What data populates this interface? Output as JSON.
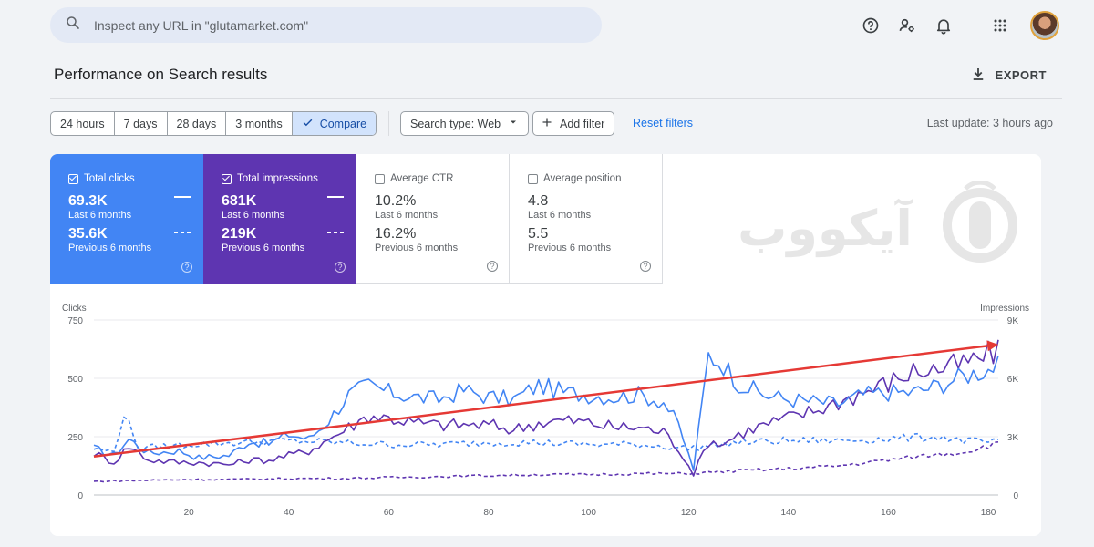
{
  "search": {
    "placeholder": "Inspect any URL in \"glutamarket.com\""
  },
  "header": {
    "icons": [
      "help-icon",
      "manage-accounts-icon",
      "notifications-icon",
      "apps-grid-icon"
    ]
  },
  "page": {
    "title": "Performance on Search results",
    "export_label": "EXPORT"
  },
  "filters": {
    "ranges": [
      {
        "label": "24 hours",
        "active": false
      },
      {
        "label": "7 days",
        "active": false
      },
      {
        "label": "28 days",
        "active": false
      },
      {
        "label": "3 months",
        "active": false
      },
      {
        "label": "Compare",
        "active": true
      }
    ],
    "search_type": "Search type: Web",
    "add_filter": "Add filter",
    "reset": "Reset filters",
    "last_update": "Last update: 3 hours ago"
  },
  "metrics": {
    "clicks": {
      "label": "Total clicks",
      "value": "69.3K",
      "period": "Last 6 months",
      "prev_value": "35.6K",
      "prev_period": "Previous 6 months",
      "checked": true,
      "color": "#4285f4"
    },
    "impressions": {
      "label": "Total impressions",
      "value": "681K",
      "period": "Last 6 months",
      "prev_value": "219K",
      "prev_period": "Previous 6 months",
      "checked": true,
      "color": "#5e35b1"
    },
    "ctr": {
      "label": "Average CTR",
      "value": "10.2%",
      "period": "Last 6 months",
      "prev_value": "16.2%",
      "prev_period": "Previous 6 months",
      "checked": false
    },
    "position": {
      "label": "Average position",
      "value": "4.8",
      "period": "Last 6 months",
      "prev_value": "5.5",
      "prev_period": "Previous 6 months",
      "checked": false
    }
  },
  "watermark": {
    "text": "آیکووب"
  },
  "chart_data": {
    "type": "line",
    "left_axis": {
      "label": "Clicks",
      "ticks": [
        "0",
        "250",
        "500",
        "750"
      ],
      "range": [
        0,
        750
      ]
    },
    "right_axis": {
      "label": "Impressions",
      "ticks": [
        "0",
        "3K",
        "6K",
        "9K"
      ],
      "range": [
        0,
        9000
      ]
    },
    "x_ticks": [
      "20",
      "40",
      "60",
      "80",
      "100",
      "120",
      "140",
      "160",
      "180"
    ],
    "x_range": [
      1,
      182
    ],
    "grid": true,
    "series": [
      {
        "axis": "left",
        "style": "solid",
        "color": "#4285f4",
        "keypoints": [
          [
            1,
            200
          ],
          [
            5,
            170
          ],
          [
            8,
            240
          ],
          [
            12,
            180
          ],
          [
            18,
            190
          ],
          [
            22,
            160
          ],
          [
            28,
            170
          ],
          [
            32,
            230
          ],
          [
            36,
            220
          ],
          [
            40,
            260
          ],
          [
            44,
            240
          ],
          [
            48,
            320
          ],
          [
            52,
            430
          ],
          [
            56,
            470
          ],
          [
            60,
            440
          ],
          [
            65,
            420
          ],
          [
            70,
            410
          ],
          [
            75,
            450
          ],
          [
            80,
            420
          ],
          [
            85,
            410
          ],
          [
            90,
            470
          ],
          [
            95,
            440
          ],
          [
            100,
            430
          ],
          [
            105,
            420
          ],
          [
            110,
            430
          ],
          [
            115,
            400
          ],
          [
            118,
            300
          ],
          [
            121,
            110
          ],
          [
            124,
            600
          ],
          [
            127,
            560
          ],
          [
            130,
            480
          ],
          [
            135,
            430
          ],
          [
            140,
            410
          ],
          [
            145,
            400
          ],
          [
            150,
            390
          ],
          [
            155,
            430
          ],
          [
            160,
            440
          ],
          [
            165,
            440
          ],
          [
            170,
            470
          ],
          [
            175,
            510
          ],
          [
            180,
            540
          ],
          [
            181,
            550
          ]
        ]
      },
      {
        "axis": "left",
        "style": "solid",
        "color": "#5e35b1",
        "keypoints": [
          [
            1,
            180
          ],
          [
            5,
            140
          ],
          [
            8,
            210
          ],
          [
            12,
            150
          ],
          [
            18,
            140
          ],
          [
            22,
            140
          ],
          [
            28,
            130
          ],
          [
            32,
            150
          ],
          [
            36,
            150
          ],
          [
            40,
            170
          ],
          [
            44,
            190
          ],
          [
            48,
            240
          ],
          [
            52,
            290
          ],
          [
            56,
            340
          ],
          [
            60,
            330
          ],
          [
            65,
            310
          ],
          [
            70,
            300
          ],
          [
            75,
            300
          ],
          [
            80,
            300
          ],
          [
            85,
            280
          ],
          [
            90,
            310
          ],
          [
            95,
            320
          ],
          [
            100,
            310
          ],
          [
            105,
            290
          ],
          [
            110,
            290
          ],
          [
            115,
            270
          ],
          [
            118,
            200
          ],
          [
            121,
            90
          ],
          [
            124,
            230
          ],
          [
            127,
            220
          ],
          [
            130,
            260
          ],
          [
            135,
            300
          ],
          [
            140,
            330
          ],
          [
            145,
            360
          ],
          [
            150,
            400
          ],
          [
            155,
            440
          ],
          [
            160,
            480
          ],
          [
            165,
            530
          ],
          [
            170,
            540
          ],
          [
            175,
            560
          ],
          [
            180,
            600
          ],
          [
            181,
            610
          ]
        ]
      },
      {
        "axis": "right",
        "style": "dashed",
        "color": "#4285f4",
        "keypoints": [
          [
            1,
            2400
          ],
          [
            5,
            2200
          ],
          [
            7,
            4200
          ],
          [
            10,
            2400
          ],
          [
            20,
            2600
          ],
          [
            30,
            2700
          ],
          [
            40,
            2800
          ],
          [
            50,
            2700
          ],
          [
            60,
            2600
          ],
          [
            70,
            2600
          ],
          [
            80,
            2700
          ],
          [
            90,
            2700
          ],
          [
            100,
            2600
          ],
          [
            110,
            2600
          ],
          [
            120,
            2400
          ],
          [
            130,
            2700
          ],
          [
            140,
            2800
          ],
          [
            150,
            2800
          ],
          [
            160,
            2900
          ],
          [
            170,
            3000
          ],
          [
            175,
            2800
          ],
          [
            181,
            2700
          ]
        ]
      },
      {
        "axis": "right",
        "style": "dashed",
        "color": "#5e35b1",
        "keypoints": [
          [
            1,
            700
          ],
          [
            10,
            750
          ],
          [
            20,
            800
          ],
          [
            30,
            800
          ],
          [
            40,
            850
          ],
          [
            50,
            850
          ],
          [
            60,
            900
          ],
          [
            70,
            950
          ],
          [
            80,
            1000
          ],
          [
            90,
            1050
          ],
          [
            100,
            1050
          ],
          [
            110,
            1100
          ],
          [
            120,
            1100
          ],
          [
            130,
            1250
          ],
          [
            140,
            1350
          ],
          [
            150,
            1500
          ],
          [
            160,
            1800
          ],
          [
            170,
            2100
          ],
          [
            175,
            2200
          ],
          [
            181,
            2600
          ]
        ]
      }
    ],
    "annotation": {
      "type": "arrow",
      "color": "#e53935",
      "from": [
        1,
        165
      ],
      "to": [
        182,
        645
      ]
    }
  }
}
